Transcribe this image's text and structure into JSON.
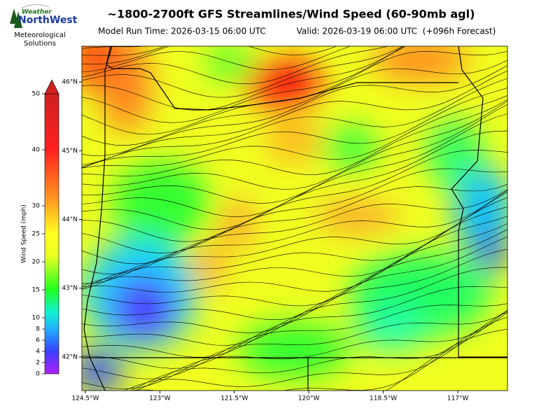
{
  "header": {
    "title": "~1800-2700ft GFS Streamlines/Wind Speed (60-90mb agl)",
    "model_run": "Model Run Time: 2026-03-15 06:00 UTC",
    "valid": "Valid: 2026-03-19 06:00 UTC  (+096h Forecast)"
  },
  "logo": {
    "brand_top": "Weather",
    "brand_main": "NorthWest",
    "tagline": [
      "Meteorological",
      "Solutions"
    ]
  },
  "colorbar": {
    "label": "Wind Speed (mph)",
    "lim": [
      0,
      50
    ],
    "ticks": [
      0,
      2,
      4,
      6,
      8,
      10,
      15,
      20,
      25,
      30,
      40,
      50
    ]
  },
  "map": {
    "xlim": [
      -124.57,
      -116.0
    ],
    "ylim": [
      41.51,
      46.52
    ],
    "xticks": [
      {
        "value": -124.5,
        "label": "124.5°W"
      },
      {
        "value": -123,
        "label": "123°W"
      },
      {
        "value": -121.5,
        "label": "121.5°W"
      },
      {
        "value": -120,
        "label": "120°W"
      },
      {
        "value": -118.5,
        "label": "118.5°W"
      },
      {
        "value": -117,
        "label": "117°W"
      }
    ],
    "yticks": [
      {
        "value": 42,
        "label": "42°N"
      },
      {
        "value": 43,
        "label": "43°N"
      },
      {
        "value": 44,
        "label": "44°N"
      },
      {
        "value": 45,
        "label": "45°N"
      },
      {
        "value": 46,
        "label": "46°N"
      }
    ]
  }
}
